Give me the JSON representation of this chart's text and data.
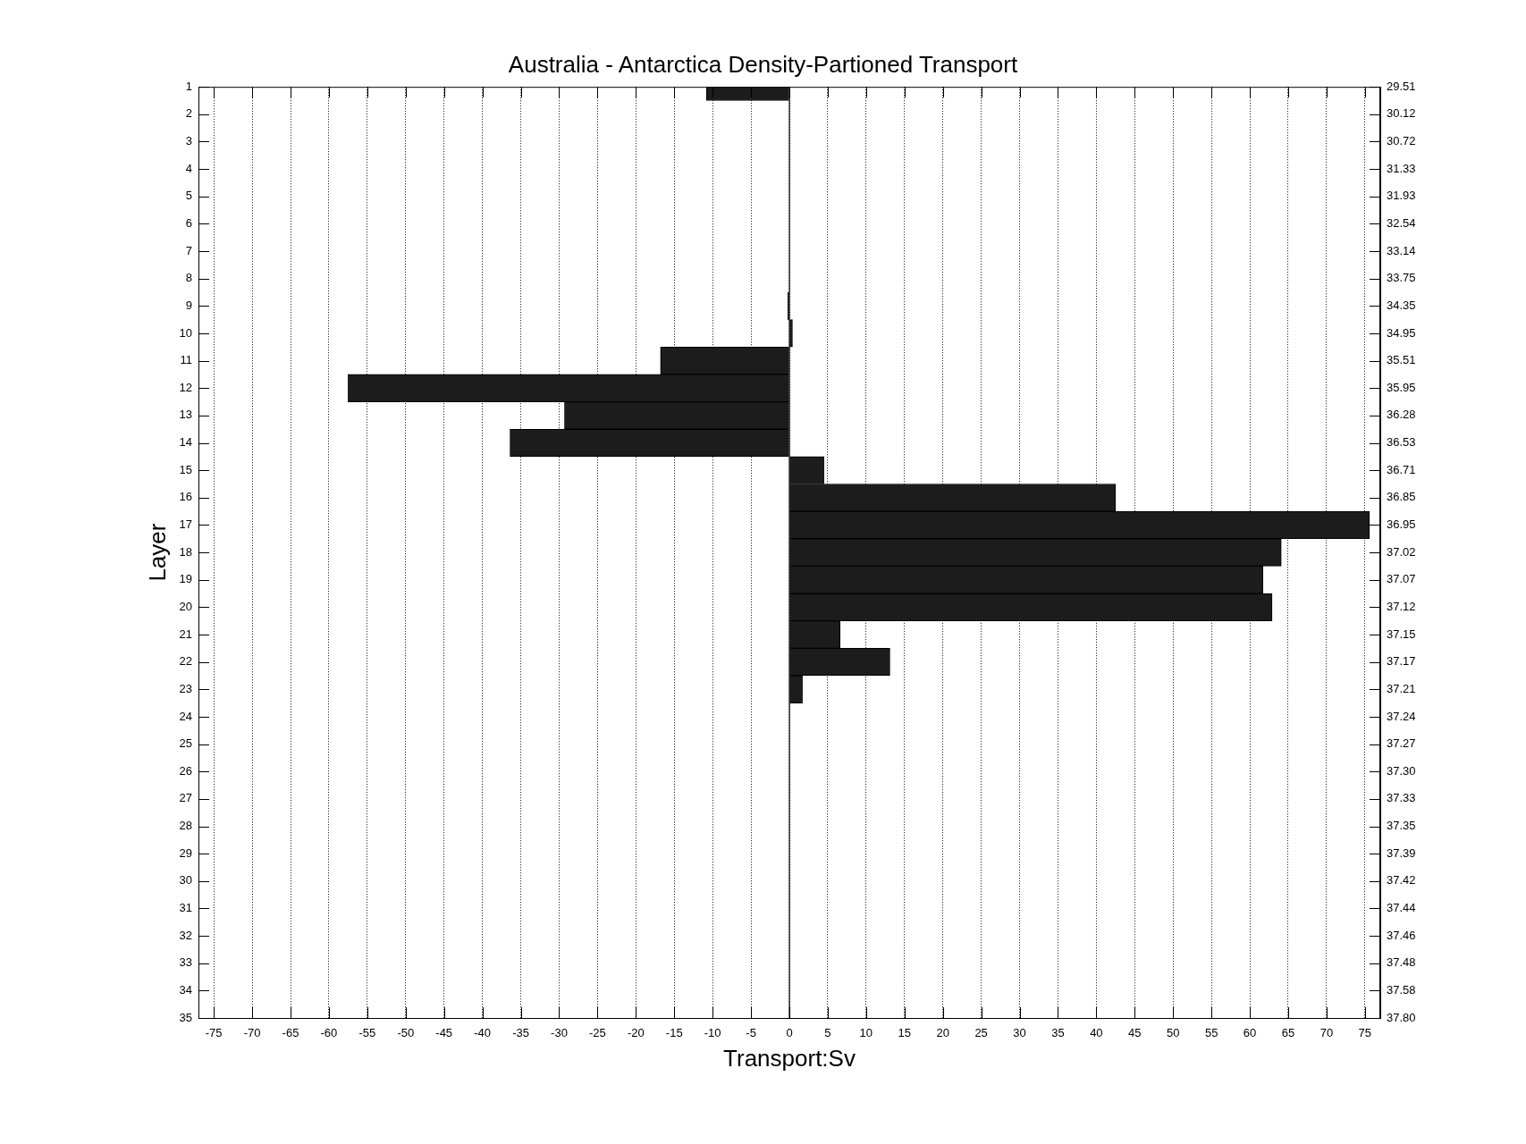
{
  "chart_data": {
    "type": "bar",
    "orientation": "horizontal",
    "title": "Australia - Antarctica Density-Partioned Transport",
    "xlabel": "Transport:Sv",
    "ylabel": "Layer",
    "categories": [
      "1",
      "2",
      "3",
      "4",
      "5",
      "6",
      "7",
      "8",
      "9",
      "10",
      "11",
      "12",
      "13",
      "14",
      "15",
      "16",
      "17",
      "18",
      "19",
      "20",
      "21",
      "22",
      "23",
      "24",
      "25",
      "26",
      "27",
      "28",
      "29",
      "30",
      "31",
      "32",
      "33",
      "34",
      "35"
    ],
    "y2_categories": [
      "29.51",
      "30.12",
      "30.72",
      "31.33",
      "31.93",
      "32.54",
      "33.14",
      "33.75",
      "34.35",
      "34.95",
      "35.51",
      "35.95",
      "36.28",
      "36.53",
      "36.71",
      "36.85",
      "36.95",
      "37.02",
      "37.07",
      "37.12",
      "37.15",
      "37.17",
      "37.21",
      "37.24",
      "37.27",
      "37.30",
      "37.33",
      "37.35",
      "37.39",
      "37.42",
      "37.44",
      "37.46",
      "37.48",
      "37.58",
      "37.80"
    ],
    "values": [
      -10.8,
      0,
      0,
      0,
      0,
      0,
      0,
      0,
      -0.2,
      0.4,
      -16.8,
      -57.5,
      -29.3,
      -36.4,
      4.5,
      42.5,
      75.6,
      64.1,
      61.7,
      62.9,
      6.6,
      13.1,
      1.7,
      0,
      0,
      0,
      0,
      0,
      0,
      0,
      0,
      0,
      0,
      0,
      0
    ],
    "color": "#1c1c1c",
    "xlim": [
      -77,
      77
    ],
    "xticks": [
      -75,
      -70,
      -65,
      -60,
      -55,
      -50,
      -45,
      -40,
      -35,
      -30,
      -25,
      -20,
      -15,
      -10,
      -5,
      0,
      5,
      10,
      15,
      20,
      25,
      30,
      35,
      40,
      45,
      50,
      55,
      60,
      65,
      70,
      75
    ],
    "grid": "x",
    "ref_lines": [
      {
        "axis": "x",
        "value": 0,
        "color": "#000000"
      }
    ]
  }
}
